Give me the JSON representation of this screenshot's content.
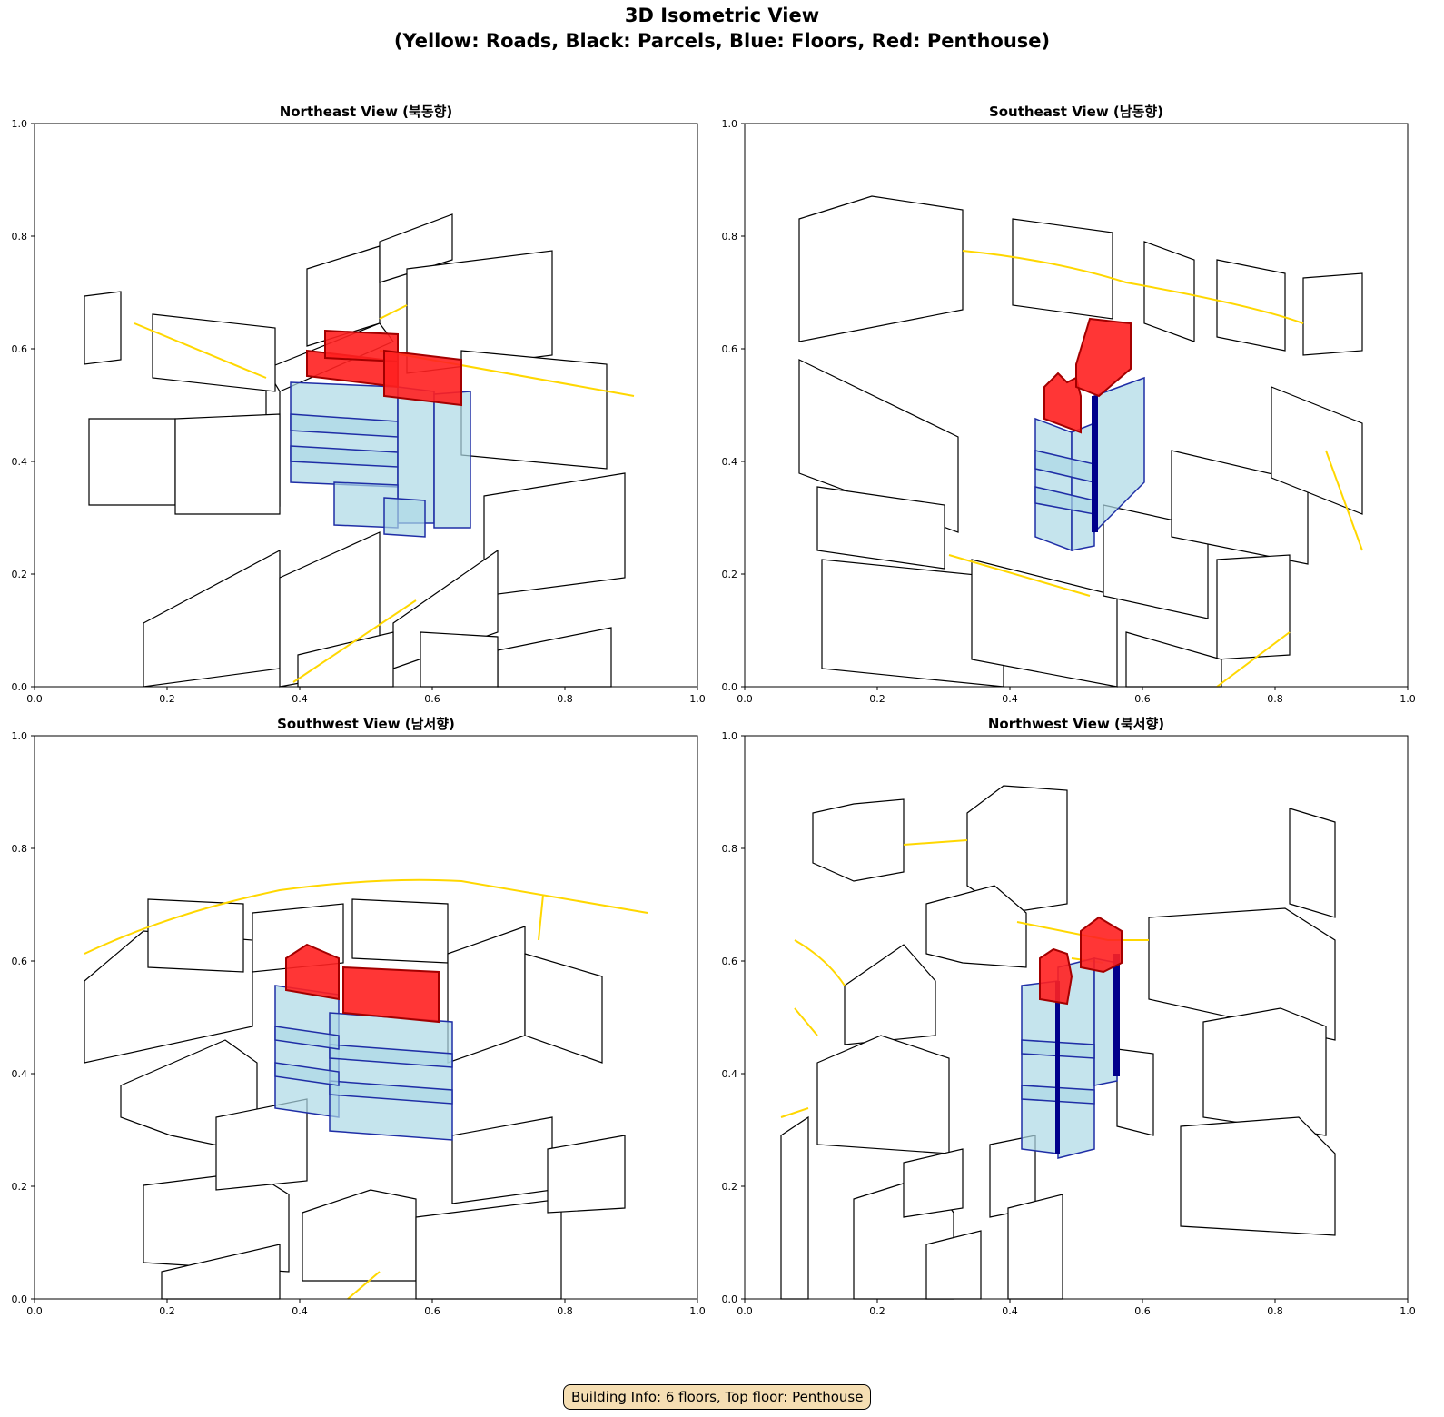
{
  "figure": {
    "title_line1": "3D Isometric View",
    "title_line2": "(Yellow: Roads, Black: Parcels, Blue: Floors, Red: Penthouse)"
  },
  "axis_ticks": [
    "0.0",
    "0.2",
    "0.4",
    "0.6",
    "0.8",
    "1.0"
  ],
  "views": [
    {
      "id": "northeast",
      "title": "Northeast View (북동향)"
    },
    {
      "id": "southeast",
      "title": "Southeast View (남동향)"
    },
    {
      "id": "southwest",
      "title": "Southwest View (남서향)"
    },
    {
      "id": "northwest",
      "title": "Northwest View (북서향)"
    }
  ],
  "legend_colors": {
    "roads": "#FFD700",
    "parcels": "#000000",
    "floors_fill": "#ADD8E6",
    "floors_edge": "#00008B",
    "penthouse": "#FF0000"
  },
  "info_box": "Building Info: 6 floors, Top floor: Penthouse"
}
